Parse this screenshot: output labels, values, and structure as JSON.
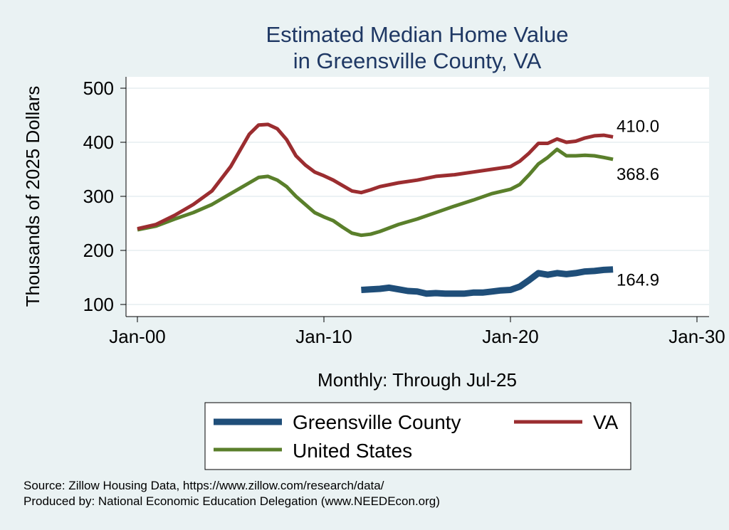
{
  "chart_data": {
    "type": "line",
    "title_lines": [
      "Estimated Median Home Value",
      "in Greensville County, VA"
    ],
    "xlabel": "Monthly: Through Jul-25",
    "ylabel": "Thousands of 2025 Dollars",
    "xlim": [
      2000.0,
      2030.0
    ],
    "ylim": [
      100,
      500
    ],
    "x_ticks": [
      {
        "value": 2000,
        "label": "Jan-00"
      },
      {
        "value": 2010,
        "label": "Jan-10"
      },
      {
        "value": 2020,
        "label": "Jan-20"
      },
      {
        "value": 2030,
        "label": "Jan-30"
      }
    ],
    "y_ticks": [
      100,
      200,
      300,
      400,
      500
    ],
    "grid": true,
    "legend_position": "bottom",
    "series": [
      {
        "name": "Greensville County",
        "color": "#1f4e79",
        "end_label": "164.9",
        "points": [
          [
            2012.0,
            127
          ],
          [
            2012.5,
            128
          ],
          [
            2013.0,
            129
          ],
          [
            2013.5,
            131
          ],
          [
            2014.0,
            128
          ],
          [
            2014.5,
            125
          ],
          [
            2015.0,
            124
          ],
          [
            2015.5,
            120
          ],
          [
            2016.0,
            121
          ],
          [
            2016.5,
            120
          ],
          [
            2017.0,
            120
          ],
          [
            2017.5,
            120
          ],
          [
            2018.0,
            122
          ],
          [
            2018.5,
            122
          ],
          [
            2019.0,
            124
          ],
          [
            2019.5,
            126
          ],
          [
            2020.0,
            127
          ],
          [
            2020.5,
            133
          ],
          [
            2021.0,
            145
          ],
          [
            2021.5,
            158
          ],
          [
            2022.0,
            155
          ],
          [
            2022.5,
            158
          ],
          [
            2023.0,
            156
          ],
          [
            2023.5,
            158
          ],
          [
            2024.0,
            161
          ],
          [
            2024.5,
            162
          ],
          [
            2025.0,
            164
          ],
          [
            2025.5,
            164.9
          ]
        ]
      },
      {
        "name": "VA",
        "color": "#9b2d30",
        "end_label": "410.0",
        "points": [
          [
            2000.0,
            240
          ],
          [
            2001.0,
            248
          ],
          [
            2002.0,
            265
          ],
          [
            2003.0,
            285
          ],
          [
            2004.0,
            310
          ],
          [
            2005.0,
            355
          ],
          [
            2005.5,
            385
          ],
          [
            2006.0,
            415
          ],
          [
            2006.5,
            432
          ],
          [
            2007.0,
            433
          ],
          [
            2007.5,
            425
          ],
          [
            2008.0,
            405
          ],
          [
            2008.5,
            375
          ],
          [
            2009.0,
            358
          ],
          [
            2009.5,
            345
          ],
          [
            2010.0,
            338
          ],
          [
            2010.5,
            330
          ],
          [
            2011.0,
            320
          ],
          [
            2011.5,
            310
          ],
          [
            2012.0,
            307
          ],
          [
            2012.5,
            312
          ],
          [
            2013.0,
            318
          ],
          [
            2014.0,
            325
          ],
          [
            2015.0,
            330
          ],
          [
            2016.0,
            337
          ],
          [
            2017.0,
            340
          ],
          [
            2018.0,
            345
          ],
          [
            2019.0,
            350
          ],
          [
            2020.0,
            355
          ],
          [
            2020.5,
            365
          ],
          [
            2021.0,
            380
          ],
          [
            2021.5,
            398
          ],
          [
            2022.0,
            398
          ],
          [
            2022.5,
            406
          ],
          [
            2023.0,
            400
          ],
          [
            2023.5,
            402
          ],
          [
            2024.0,
            408
          ],
          [
            2024.5,
            412
          ],
          [
            2025.0,
            413
          ],
          [
            2025.5,
            410.0
          ]
        ]
      },
      {
        "name": "United States",
        "color": "#5a7f2b",
        "end_label": "368.6",
        "points": [
          [
            2000.0,
            238
          ],
          [
            2001.0,
            245
          ],
          [
            2002.0,
            258
          ],
          [
            2003.0,
            270
          ],
          [
            2004.0,
            285
          ],
          [
            2005.0,
            305
          ],
          [
            2006.0,
            325
          ],
          [
            2006.5,
            335
          ],
          [
            2007.0,
            337
          ],
          [
            2007.5,
            330
          ],
          [
            2008.0,
            318
          ],
          [
            2008.5,
            300
          ],
          [
            2009.0,
            285
          ],
          [
            2009.5,
            270
          ],
          [
            2010.0,
            262
          ],
          [
            2010.5,
            255
          ],
          [
            2011.0,
            243
          ],
          [
            2011.5,
            232
          ],
          [
            2012.0,
            228
          ],
          [
            2012.5,
            230
          ],
          [
            2013.0,
            235
          ],
          [
            2014.0,
            248
          ],
          [
            2015.0,
            258
          ],
          [
            2016.0,
            270
          ],
          [
            2017.0,
            282
          ],
          [
            2018.0,
            293
          ],
          [
            2019.0,
            305
          ],
          [
            2020.0,
            313
          ],
          [
            2020.5,
            322
          ],
          [
            2021.0,
            340
          ],
          [
            2021.5,
            360
          ],
          [
            2022.0,
            372
          ],
          [
            2022.5,
            387
          ],
          [
            2023.0,
            375
          ],
          [
            2023.5,
            375
          ],
          [
            2024.0,
            376
          ],
          [
            2024.5,
            375
          ],
          [
            2025.0,
            372
          ],
          [
            2025.5,
            368.6
          ]
        ]
      }
    ]
  },
  "footer": {
    "source": "Source: Zillow Housing Data, https://www.zillow.com/research/data/",
    "produced_by": "Produced by: National Economic Education Delegation (www.NEEDEcon.org)"
  }
}
